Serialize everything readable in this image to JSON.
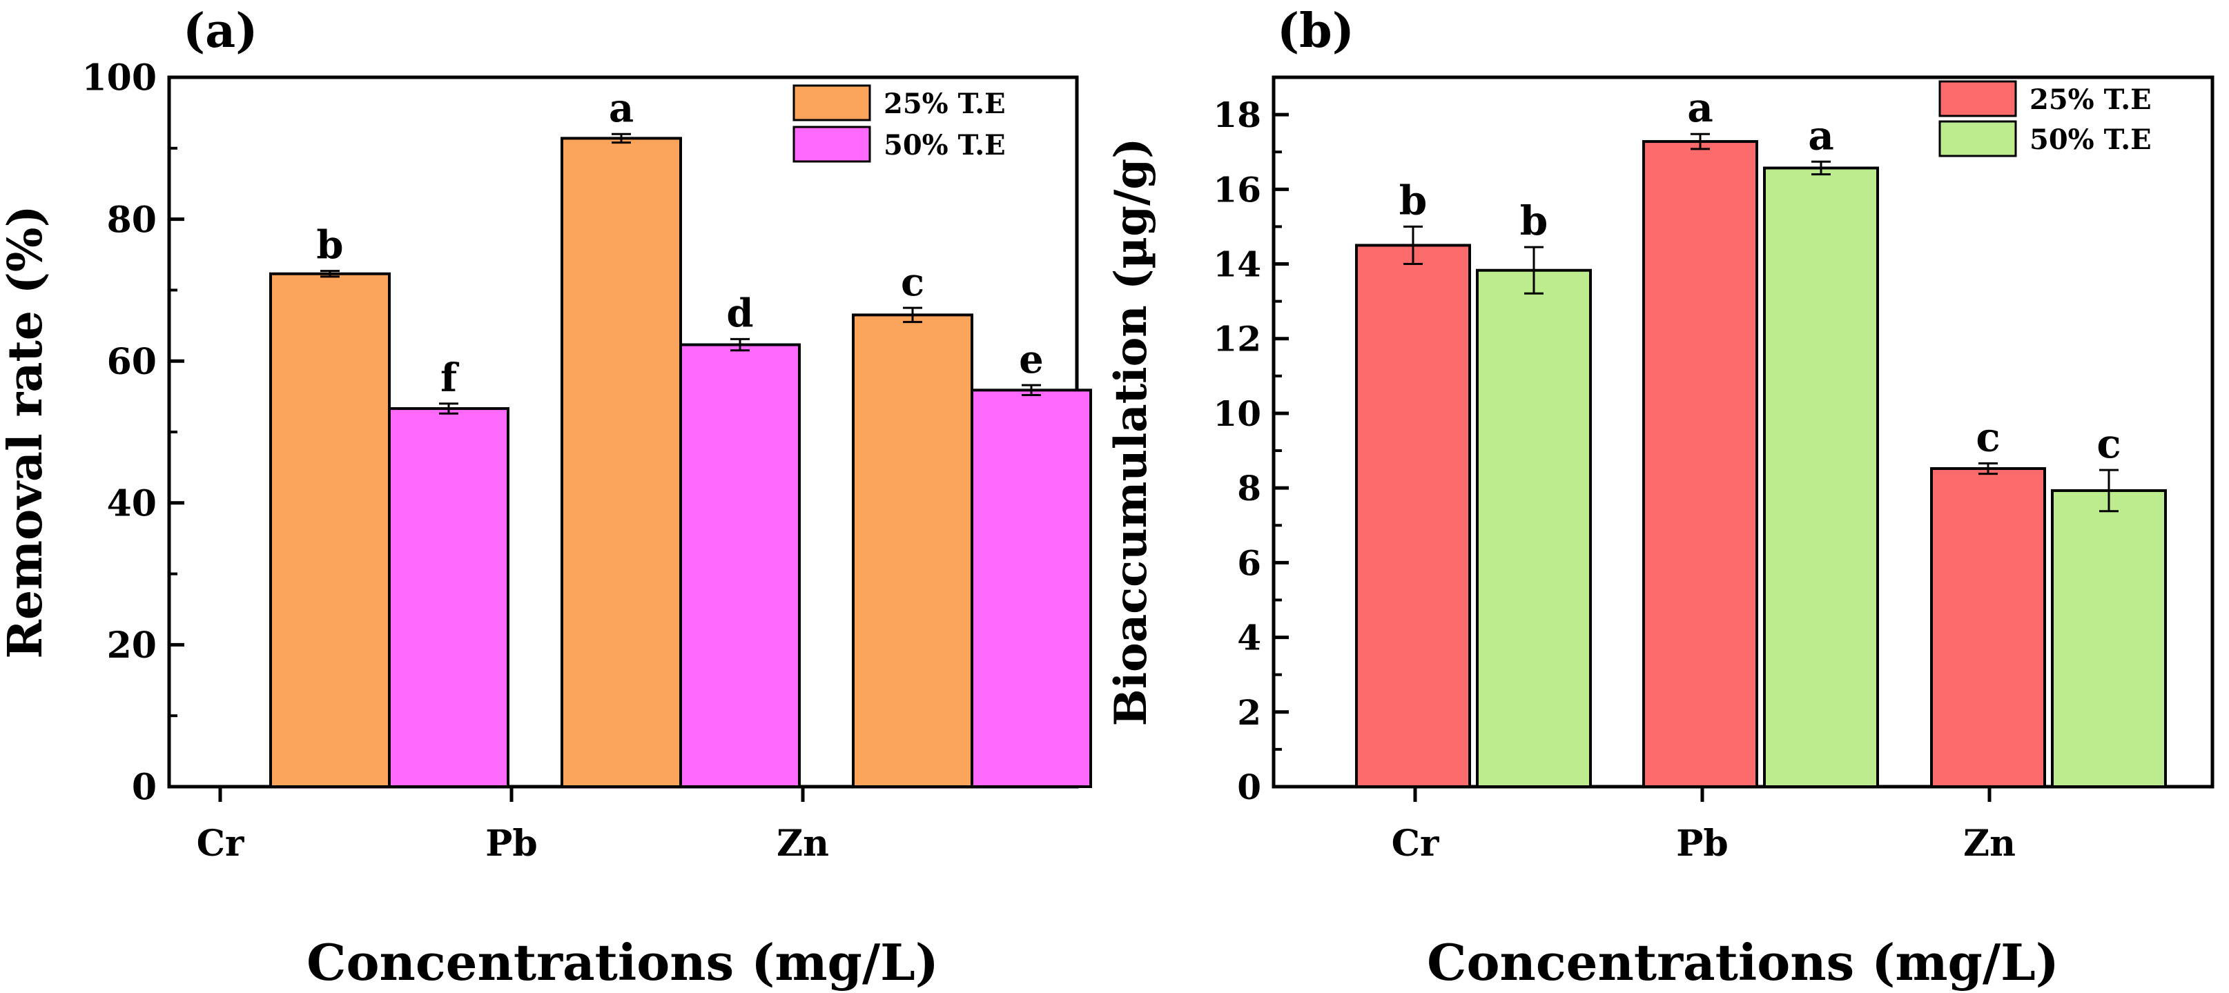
{
  "chart_data": [
    {
      "panel_label": "(a)",
      "type": "bar",
      "xlabel": "Concentrations (mg/L)",
      "ylabel": "Removal rate (%)",
      "ylim": [
        0,
        100
      ],
      "yticks": [
        0,
        20,
        40,
        60,
        80,
        100
      ],
      "categories": [
        "Cr",
        "Pb",
        "Zn"
      ],
      "series": [
        {
          "name": "25% T.E",
          "color": "#fba55c",
          "values": [
            72.3,
            91.4,
            66.5
          ],
          "errors": [
            0.4,
            0.6,
            1.0
          ],
          "letters": [
            "b",
            "a",
            "c"
          ]
        },
        {
          "name": "50% T.E",
          "color": "#fd6afd",
          "values": [
            53.3,
            62.3,
            55.9
          ],
          "errors": [
            0.7,
            0.8,
            0.7
          ],
          "letters": [
            "f",
            "d",
            "e"
          ]
        }
      ],
      "legend_position": "top-right",
      "grid": false
    },
    {
      "panel_label": "(b)",
      "type": "bar",
      "xlabel": "Concentrations (mg/L)",
      "ylabel": "Bioaccumulation (µg/g)",
      "ylim": [
        0,
        19
      ],
      "yticks": [
        0,
        2,
        4,
        6,
        8,
        10,
        12,
        14,
        16,
        18
      ],
      "categories": [
        "Cr",
        "Pb",
        "Zn"
      ],
      "series": [
        {
          "name": "25% T.E",
          "color": "#fc6b6b",
          "values": [
            14.5,
            17.28,
            8.52
          ],
          "errors": [
            0.5,
            0.2,
            0.14
          ],
          "letters": [
            "b",
            "a",
            "c"
          ]
        },
        {
          "name": "50% T.E",
          "color": "#bdec8e",
          "values": [
            13.83,
            16.57,
            7.93
          ],
          "errors": [
            0.62,
            0.17,
            0.55
          ],
          "letters": [
            "b",
            "a",
            "c"
          ]
        }
      ],
      "legend_position": "top-right",
      "grid": false
    }
  ]
}
